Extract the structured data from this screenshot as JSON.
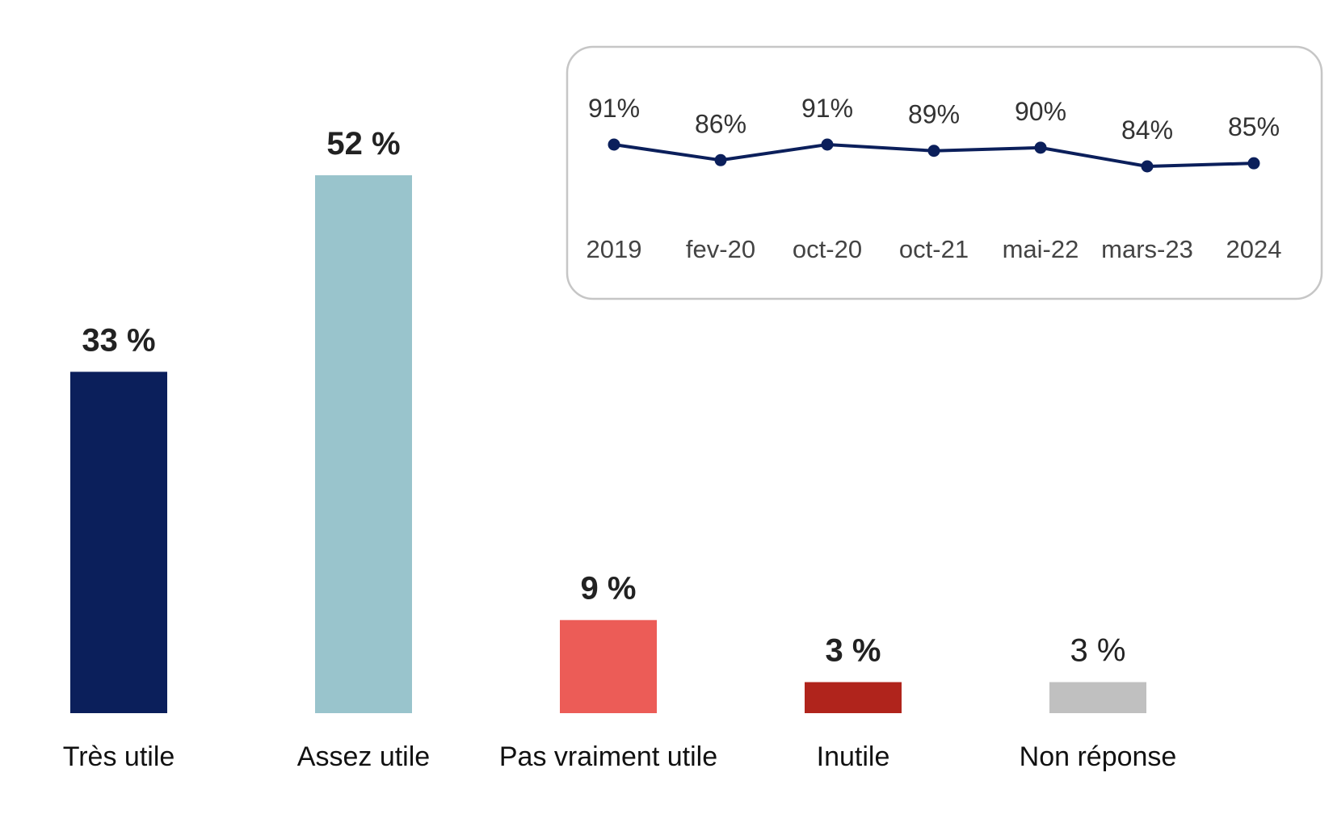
{
  "chart_data": [
    {
      "type": "bar",
      "categories": [
        "Très utile",
        "Assez utile",
        "Pas vraiment utile",
        "Inutile",
        "Non réponse"
      ],
      "values": [
        33,
        52,
        9,
        3,
        3
      ],
      "value_labels": [
        "33 %",
        "52 %",
        "9 %",
        "3 %",
        "3 %"
      ],
      "value_label_bold": [
        true,
        true,
        true,
        true,
        false
      ],
      "colors": [
        "#0b1f5b",
        "#99c4cc",
        "#ec5c57",
        "#b0241c",
        "#c0c0c0"
      ],
      "ylim": [
        0,
        52
      ],
      "grid": false
    },
    {
      "type": "line",
      "x": [
        "2019",
        "fev-20",
        "oct-20",
        "oct-21",
        "mai-22",
        "mars-23",
        "2024"
      ],
      "values": [
        91,
        86,
        91,
        89,
        90,
        84,
        85
      ],
      "value_labels": [
        "91%",
        "86%",
        "91%",
        "89%",
        "90%",
        "84%",
        "85%"
      ],
      "color": "#0b1f5b",
      "grid": false,
      "placement": "top-right inset"
    }
  ]
}
